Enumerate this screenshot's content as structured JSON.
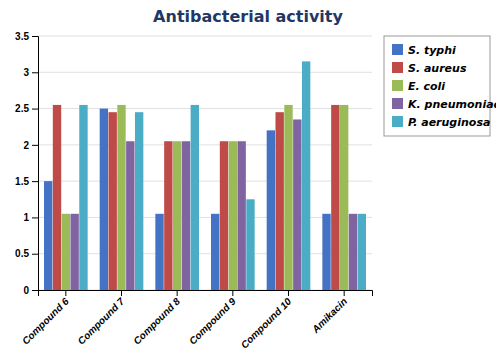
{
  "chart_data": {
    "type": "bar",
    "title": "Antibacterial activity",
    "categories": [
      "Compound 6",
      "Compound 7",
      "Compound 8",
      "Compound 9",
      "Compound 10",
      "Amikacin"
    ],
    "series": [
      {
        "name": "S. typhi",
        "color": "#4472C4",
        "values": [
          1.5,
          2.5,
          1.05,
          1.05,
          2.2,
          1.05
        ]
      },
      {
        "name": "S. aureus",
        "color": "#BE4B48",
        "values": [
          2.55,
          2.45,
          2.05,
          2.05,
          2.45,
          2.55
        ]
      },
      {
        "name": "E. coli",
        "color": "#9BBB59",
        "values": [
          1.05,
          2.55,
          2.05,
          2.05,
          2.55,
          2.55
        ]
      },
      {
        "name": "K. pneumoniae",
        "color": "#8064A2",
        "values": [
          1.05,
          2.05,
          2.05,
          2.05,
          2.35,
          1.05
        ]
      },
      {
        "name": "P. aeruginosa",
        "color": "#4BACC6",
        "values": [
          2.55,
          2.45,
          2.55,
          1.25,
          3.15,
          1.05
        ]
      }
    ],
    "ylim": [
      0,
      3.5
    ],
    "yticks": [
      0,
      0.5,
      1,
      1.5,
      2,
      2.5,
      3,
      3.5
    ],
    "grid": true,
    "legend": "right"
  }
}
